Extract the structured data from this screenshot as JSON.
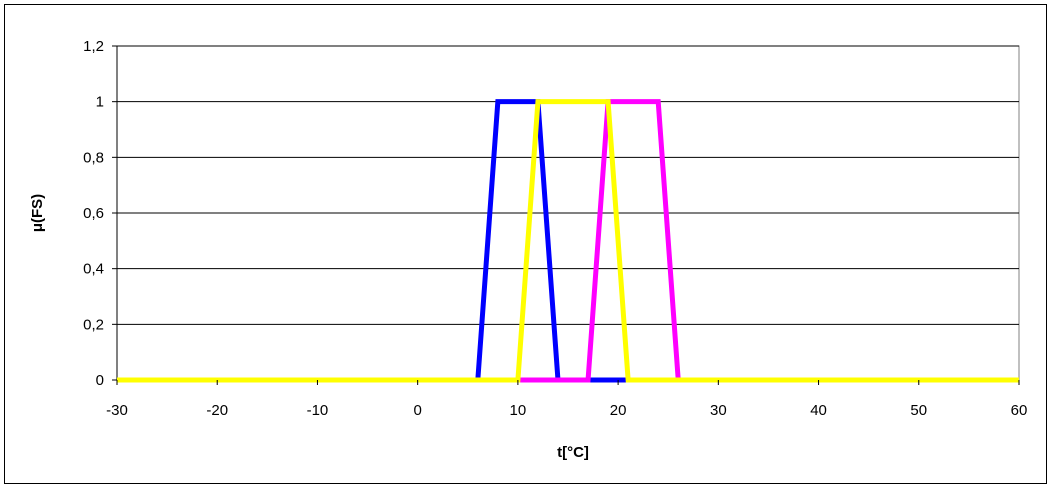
{
  "chart_data": {
    "type": "line",
    "xlabel": "t[°C]",
    "ylabel": "μ(FS)",
    "xlim": [
      -30,
      60
    ],
    "ylim": [
      0,
      1.2
    ],
    "xticks": [
      "-30",
      "-20",
      "-10",
      "0",
      "10",
      "20",
      "30",
      "40",
      "50",
      "60"
    ],
    "yticks": [
      "0",
      "0,2",
      "0,4",
      "0,6",
      "0,8",
      "1",
      "1,2"
    ],
    "grid": "horizontal",
    "legend": "none",
    "series": [
      {
        "color": "#0000FF",
        "x": [
          -30,
          6,
          8,
          12,
          14,
          60
        ],
        "y": [
          0,
          0,
          1,
          1,
          0,
          0
        ]
      },
      {
        "color": "#FF00FF",
        "x": [
          -30,
          17,
          19,
          24,
          26,
          60
        ],
        "y": [
          0,
          0,
          1,
          1,
          0,
          0
        ]
      },
      {
        "color": "#FFFF00",
        "x": [
          -30,
          10,
          12,
          19,
          21,
          60
        ],
        "y": [
          0,
          0,
          1,
          1,
          0,
          0
        ]
      }
    ]
  },
  "colors": {
    "grid": "#000000",
    "axis": "#808080",
    "background": "#ffffff"
  }
}
